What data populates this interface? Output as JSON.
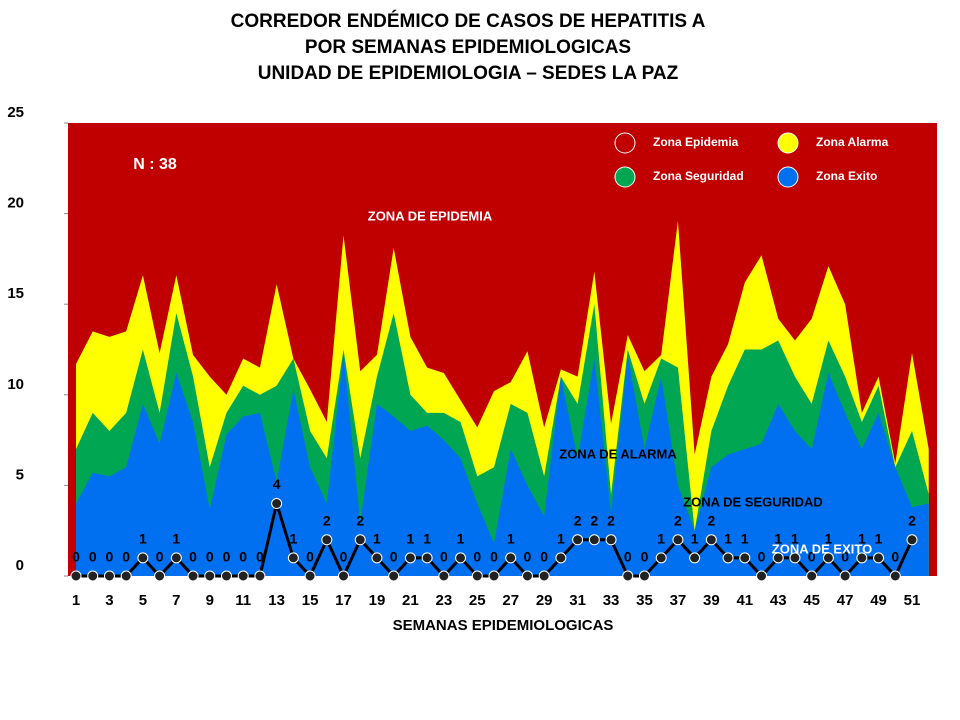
{
  "chart_data": {
    "type": "endemic-corridor",
    "title": [
      "CORREDOR ENDÉMICO DE CASOS DE HEPATITIS A",
      "POR SEMANAS EPIDEMIOLOGICAS",
      "UNIDAD DE EPIDEMIOLOGIA – SEDES LA PAZ"
    ],
    "x_label": "SEMANAS EPIDEMIOLOGICAS",
    "categories": [
      1,
      null,
      3,
      null,
      5,
      null,
      7,
      null,
      9,
      null,
      11,
      null,
      13,
      null,
      15,
      null,
      17,
      null,
      19,
      null,
      21,
      null,
      23,
      null,
      25,
      null,
      27,
      null,
      29,
      null,
      31,
      null,
      33,
      null,
      35,
      null,
      37,
      null,
      39,
      null,
      41,
      null,
      43,
      null,
      45,
      null,
      47,
      null,
      49,
      null,
      51,
      null
    ],
    "ylim": [
      0,
      25
    ],
    "yticks": [
      0,
      5,
      10,
      15,
      20,
      25
    ],
    "epidemia_zone": {
      "name": "Zona Epidemia",
      "color": "#c00000"
    },
    "series": [
      {
        "name": "Zona Alarma",
        "color": "#ffff00",
        "values": [
          11.7,
          13.5,
          13.2,
          13.5,
          16.6,
          12.3,
          16.6,
          12.2,
          11,
          10,
          12,
          11.5,
          16.1,
          12,
          10.3,
          8.5,
          18.8,
          11.3,
          12.2,
          18.1,
          13.2,
          11.5,
          11.2,
          9.7,
          8.2,
          10.2,
          10.7,
          12.4,
          8.2,
          11.4,
          11,
          16.8,
          8.4,
          13.3,
          11.3,
          12.2,
          19.6,
          6.7,
          11,
          12.8,
          16.2,
          17.7,
          14.2,
          13,
          14.2,
          17.1,
          15,
          9,
          11,
          6.2,
          12.3,
          7
        ]
      },
      {
        "name": "Zona Seguridad",
        "color": "#00a651",
        "values": [
          7,
          9,
          8,
          9,
          12.5,
          9,
          14.5,
          11,
          6,
          9,
          10.5,
          10,
          10.5,
          12,
          8,
          6.5,
          12.5,
          6.5,
          11,
          14.5,
          10,
          9,
          9,
          8.5,
          5.5,
          6,
          9.5,
          9,
          5.5,
          11,
          9.5,
          15,
          4.5,
          12.5,
          9.5,
          12,
          11.5,
          2.5,
          8,
          10.5,
          12.5,
          12.5,
          13,
          11,
          9.5,
          13,
          11,
          8.5,
          10.5,
          6,
          8,
          4.5
        ]
      },
      {
        "name": "Zona Exito",
        "color": "#0070f0",
        "values": [
          4,
          5.7,
          5.5,
          6,
          9.5,
          7.3,
          11.2,
          8.5,
          3.7,
          7.8,
          8.8,
          9,
          5.2,
          10.3,
          6,
          4,
          12.3,
          3,
          9.5,
          8.8,
          8,
          8.3,
          7.5,
          6.5,
          4,
          1.8,
          7,
          5,
          3.3,
          11,
          6.5,
          12,
          3.5,
          12.2,
          7,
          11,
          5,
          2.5,
          6,
          6.7,
          7,
          7.3,
          9.5,
          8,
          7,
          11.2,
          9,
          7,
          9,
          6,
          3.8,
          4
        ]
      }
    ],
    "cases": {
      "color": "#000000",
      "values": [
        0,
        0,
        0,
        0,
        1,
        0,
        1,
        0,
        0,
        0,
        0,
        0,
        4,
        1,
        0,
        2,
        0,
        2,
        1,
        0,
        1,
        1,
        0,
        1,
        0,
        0,
        1,
        0,
        0,
        1,
        2,
        2,
        2,
        0,
        0,
        1,
        2,
        1,
        2,
        1,
        1,
        0,
        1,
        1,
        0,
        1,
        0,
        1,
        1,
        0,
        2,
        null
      ]
    },
    "annotations": [
      "N : 38",
      "ZONA DE EPIDEMIA",
      "ZONA DE ALARMA",
      "ZONA DE  SEGURIDAD",
      "ZONA DE  EXITO"
    ]
  }
}
